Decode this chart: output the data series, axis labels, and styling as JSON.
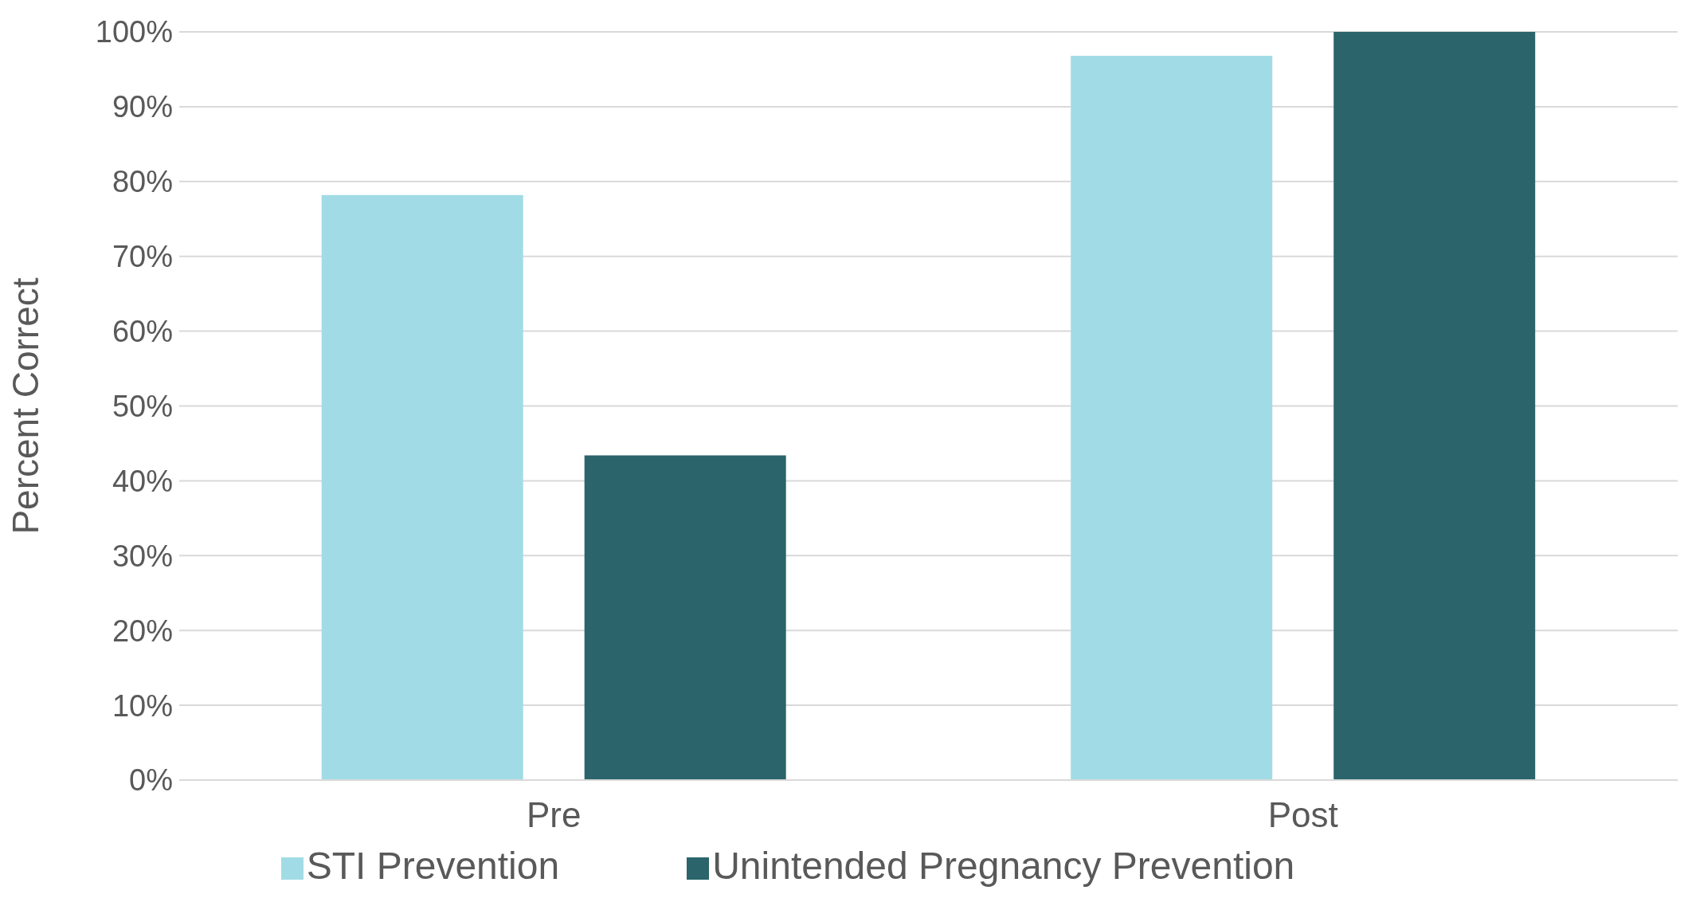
{
  "chart_data": {
    "type": "bar",
    "ylabel": "Percent Correct",
    "categories": [
      "Pre",
      "Post"
    ],
    "series": [
      {
        "name": "STI Prevention",
        "color": "#a1dce6",
        "values": [
          78.2,
          96.8
        ]
      },
      {
        "name": "Unintended Pregnancy Prevention",
        "color": "#2b646b",
        "values": [
          43.4,
          100
        ]
      }
    ],
    "ylim": [
      0,
      100
    ],
    "yticks": [
      {
        "value": 0,
        "label": "0%"
      },
      {
        "value": 10,
        "label": "10%"
      },
      {
        "value": 20,
        "label": "20%"
      },
      {
        "value": 30,
        "label": "30%"
      },
      {
        "value": 40,
        "label": "40%"
      },
      {
        "value": 50,
        "label": "50%"
      },
      {
        "value": 60,
        "label": "60%"
      },
      {
        "value": 70,
        "label": "70%"
      },
      {
        "value": 80,
        "label": "80%"
      },
      {
        "value": 90,
        "label": "90%"
      },
      {
        "value": 100,
        "label": "100%"
      }
    ],
    "grid": "y",
    "legend": "bottom"
  }
}
